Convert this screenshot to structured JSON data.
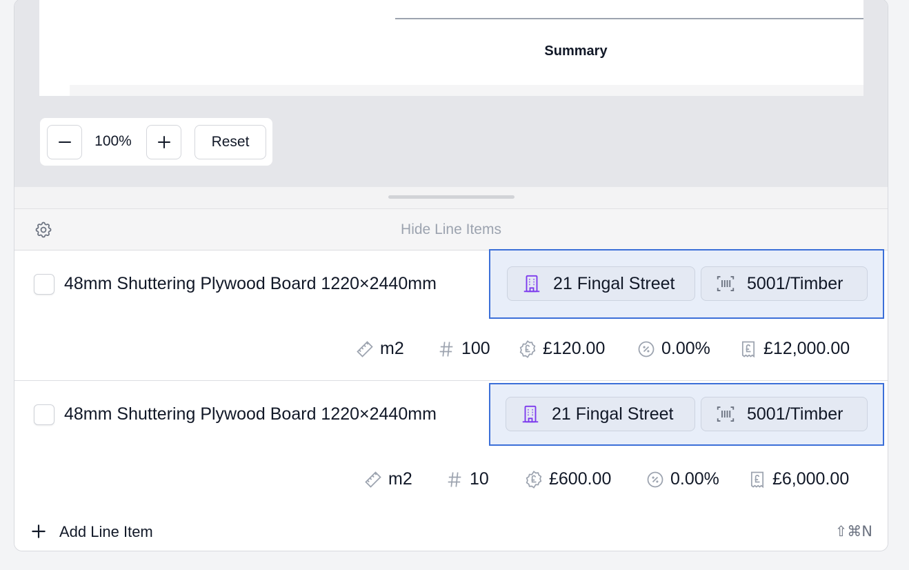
{
  "viewer": {
    "summary_heading": "Summary",
    "zoom": {
      "minus": "−",
      "value": "100%",
      "plus": "+",
      "reset_label": "Reset"
    }
  },
  "line_items": {
    "hide_label": "Hide Line Items",
    "settings_icon": "gear-icon",
    "rows": [
      {
        "name": "48mm Shuttering Plywood Board 1220×2440mm",
        "site": "21 Fingal Street",
        "cost_code": "5001/Timber",
        "unit": "m2",
        "quantity": "100",
        "unit_price": "£120.00",
        "discount": "0.00%",
        "total": "£12,000.00"
      },
      {
        "name": "48mm Shuttering Plywood Board 1220×2440mm",
        "site": "21 Fingal Street",
        "cost_code": "5001/Timber",
        "unit": "m2",
        "quantity": "10",
        "unit_price": "£600.00",
        "discount": "0.00%",
        "total": "£6,000.00"
      }
    ],
    "add_label": "Add Line Item",
    "add_shortcut": "⇧⌘N"
  },
  "colors": {
    "accent_border": "#3b6fd8",
    "tag_background": "#e8eef9",
    "site_icon": "#7c3aed"
  }
}
